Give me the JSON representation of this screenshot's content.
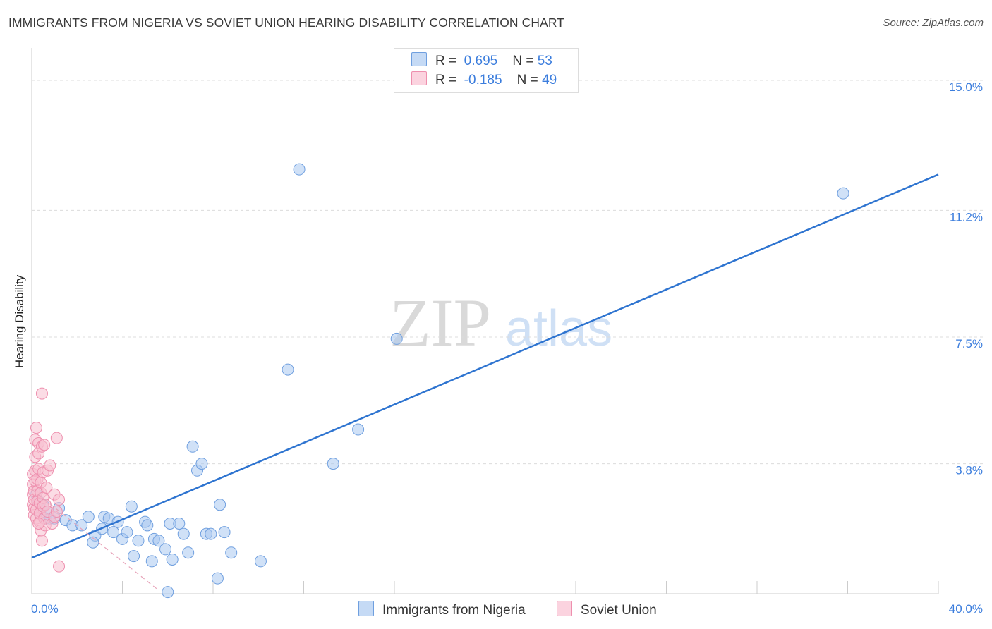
{
  "title": "IMMIGRANTS FROM NIGERIA VS SOVIET UNION HEARING DISABILITY CORRELATION CHART",
  "source": "Source: ZipAtlas.com",
  "watermark": {
    "zip": "ZIP",
    "atlas": "atlas"
  },
  "legend": {
    "rows": [
      {
        "r_label": "R =",
        "r_value": "0.695",
        "n_label": "N =",
        "n_value": "53",
        "color": "#a9c8f0",
        "border": "#6f9fdf"
      },
      {
        "r_label": "R =",
        "r_value": "-0.185",
        "n_label": "N =",
        "n_value": "49",
        "color": "#f8bfd0",
        "border": "#ee8fae"
      }
    ]
  },
  "chart_data": {
    "type": "scatter",
    "ylabel": "Hearing Disability",
    "xlim": [
      0,
      40
    ],
    "ylim": [
      0,
      15.7
    ],
    "x_tick_labels": [
      "0.0%",
      "40.0%"
    ],
    "y_ticks": [
      3.8,
      7.5,
      11.2,
      15.0
    ],
    "y_tick_labels": [
      "3.8%",
      "7.5%",
      "11.2%",
      "15.0%"
    ],
    "grid": "horizontal-dashed",
    "series": [
      {
        "name": "Immigrants from Nigeria",
        "color": "#a9c8f0",
        "stroke": "#6f9fdf",
        "trend_color": "#2e74d0",
        "trend": {
          "x0": 0,
          "y0": 1.05,
          "x1": 40,
          "y1": 12.25
        },
        "points": [
          [
            0.3,
            2.7
          ],
          [
            0.4,
            2.3
          ],
          [
            0.5,
            2.6
          ],
          [
            0.6,
            2.2
          ],
          [
            0.7,
            2.4
          ],
          [
            0.8,
            2.2
          ],
          [
            1.0,
            2.2
          ],
          [
            1.2,
            2.5
          ],
          [
            1.5,
            2.15
          ],
          [
            1.8,
            2.0
          ],
          [
            2.2,
            2.0
          ],
          [
            2.5,
            2.25
          ],
          [
            2.8,
            1.7
          ],
          [
            2.7,
            1.5
          ],
          [
            3.1,
            1.9
          ],
          [
            3.2,
            2.25
          ],
          [
            3.4,
            2.2
          ],
          [
            3.6,
            1.8
          ],
          [
            3.8,
            2.1
          ],
          [
            4.0,
            1.6
          ],
          [
            4.2,
            1.8
          ],
          [
            4.4,
            2.55
          ],
          [
            4.5,
            1.1
          ],
          [
            4.7,
            1.55
          ],
          [
            5.0,
            2.1
          ],
          [
            5.1,
            2.0
          ],
          [
            5.3,
            0.95
          ],
          [
            5.4,
            1.6
          ],
          [
            5.6,
            1.55
          ],
          [
            5.9,
            1.3
          ],
          [
            6.0,
            0.05
          ],
          [
            6.1,
            2.05
          ],
          [
            6.2,
            1.0
          ],
          [
            6.5,
            2.05
          ],
          [
            6.7,
            1.75
          ],
          [
            6.9,
            1.2
          ],
          [
            7.1,
            4.3
          ],
          [
            7.3,
            3.6
          ],
          [
            7.5,
            3.8
          ],
          [
            7.7,
            1.75
          ],
          [
            7.9,
            1.75
          ],
          [
            8.2,
            0.45
          ],
          [
            8.3,
            2.6
          ],
          [
            8.5,
            1.8
          ],
          [
            8.8,
            1.2
          ],
          [
            10.1,
            0.95
          ],
          [
            11.8,
            12.4
          ],
          [
            11.3,
            6.55
          ],
          [
            13.3,
            3.8
          ],
          [
            14.4,
            4.8
          ],
          [
            16.1,
            7.45
          ],
          [
            35.8,
            11.7
          ],
          [
            0.2,
            2.9
          ]
        ]
      },
      {
        "name": "Soviet Union",
        "color": "#f8bfd0",
        "stroke": "#ee8fae",
        "trend_color": "#e7a3b9",
        "trend": {
          "x0": 0,
          "y0": 3.05,
          "x1": 5.6,
          "y1": 0.1
        },
        "points": [
          [
            0.05,
            2.6
          ],
          [
            0.05,
            2.9
          ],
          [
            0.05,
            3.2
          ],
          [
            0.05,
            3.5
          ],
          [
            0.1,
            2.3
          ],
          [
            0.1,
            2.5
          ],
          [
            0.1,
            2.75
          ],
          [
            0.1,
            3.0
          ],
          [
            0.15,
            3.3
          ],
          [
            0.15,
            3.6
          ],
          [
            0.15,
            4.0
          ],
          [
            0.15,
            4.5
          ],
          [
            0.2,
            4.85
          ],
          [
            0.2,
            2.2
          ],
          [
            0.2,
            2.45
          ],
          [
            0.25,
            2.7
          ],
          [
            0.25,
            3.0
          ],
          [
            0.25,
            3.35
          ],
          [
            0.3,
            3.65
          ],
          [
            0.3,
            4.1
          ],
          [
            0.3,
            4.4
          ],
          [
            0.35,
            2.1
          ],
          [
            0.35,
            2.35
          ],
          [
            0.35,
            2.65
          ],
          [
            0.4,
            2.95
          ],
          [
            0.4,
            3.25
          ],
          [
            0.4,
            1.85
          ],
          [
            0.45,
            1.55
          ],
          [
            0.45,
            4.3
          ],
          [
            0.5,
            2.55
          ],
          [
            0.5,
            2.8
          ],
          [
            0.5,
            3.55
          ],
          [
            0.55,
            2.2
          ],
          [
            0.55,
            4.35
          ],
          [
            0.6,
            2.0
          ],
          [
            0.6,
            2.6
          ],
          [
            0.45,
            5.85
          ],
          [
            0.65,
            3.1
          ],
          [
            0.7,
            2.4
          ],
          [
            0.7,
            3.6
          ],
          [
            0.8,
            3.75
          ],
          [
            0.9,
            2.05
          ],
          [
            1.0,
            2.25
          ],
          [
            1.1,
            2.4
          ],
          [
            1.0,
            2.9
          ],
          [
            1.1,
            4.55
          ],
          [
            1.2,
            2.75
          ],
          [
            1.2,
            0.8
          ],
          [
            0.3,
            2.05
          ]
        ]
      }
    ]
  }
}
